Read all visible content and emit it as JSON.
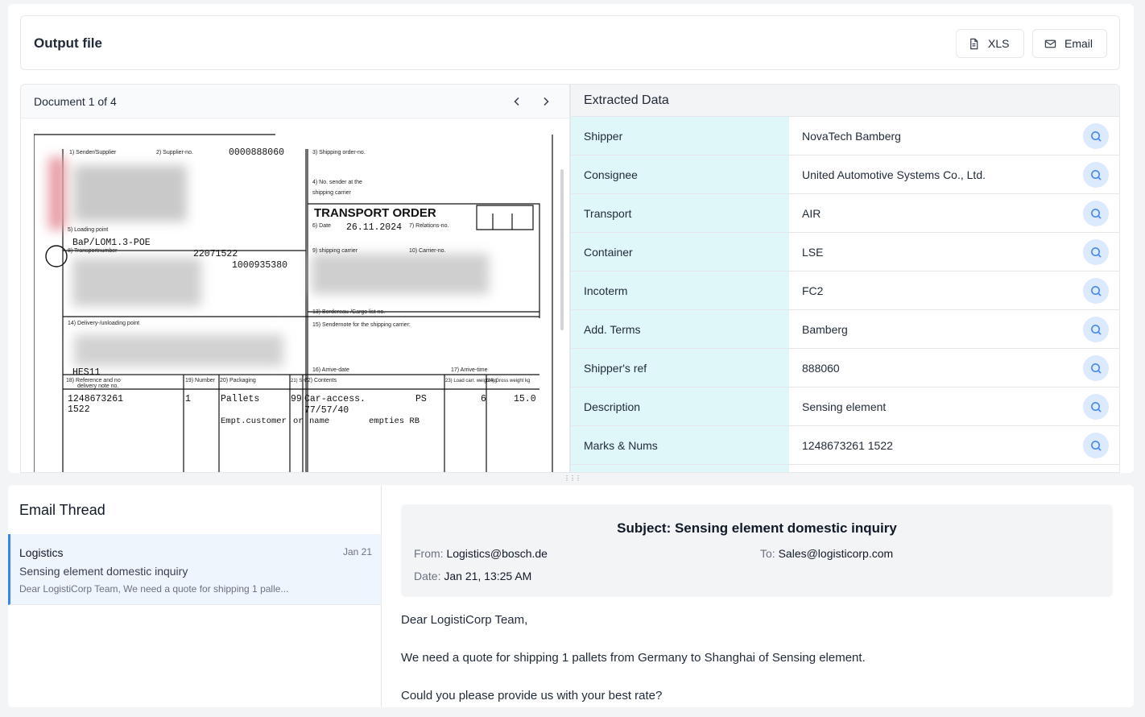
{
  "output": {
    "title": "Output file",
    "xls_label": "XLS",
    "email_label": "Email"
  },
  "document": {
    "counter": "Document 1 of 4",
    "form": {
      "sender_label": "1) Sender/Supplier",
      "supplier_label": "2) Supplier-no.",
      "supplier_no": "0000888060",
      "shipping_order_label": "3) Shipping order-no.",
      "no_sender_label": "4) No. sender at the",
      "no_sender_label2": "shipping carrier",
      "title": "TRANSPORT ORDER",
      "date_label": "6) Date",
      "date": "26.11.2024",
      "relations_label": "7) Relations-no.",
      "loading_label": "5) Loading point",
      "loading_point": "BaP/LOM1.3-POE",
      "transport_label": "8) Transportnumber",
      "transport_no": "22071522",
      "shipping_carrier_label": "9) shipping carrier",
      "carrier_label": "10) Carrier-no.",
      "customer_no": "1000935380",
      "bordereau_label": "13) Bordereau-/Cargo list no.",
      "delivery_label": "14) Delivery-/unloading point",
      "sendernote_label": "15) Sendernote for the shipping carrier:",
      "unload_code": "HES11",
      "arrive_date_label": "16) Arrive-date",
      "arrive_time_label": "17) Arrive-time",
      "ref_label": "18) Reference and no",
      "ref_label2": "delivery note no.",
      "number_label": "19) Number",
      "packaging_label": "20) Packaging",
      "sh_label": "21) SH",
      "contents_label": "22) Contents",
      "load_label": "23) Load carr. weight kg",
      "gross_label": "24) Gross weight kg",
      "ref_no": "1248673261",
      "ref_no2": "1522",
      "number": "1",
      "packaging": "Pallets",
      "packaging2": "Empt.customer",
      "sh": "99",
      "sh2": "or",
      "contents": "Car-access.",
      "contents_ps": "PS",
      "contents2": "77/57/40",
      "contents3": "name",
      "contents4": "empties RB",
      "load_weight": "6",
      "gross_weight": "15.0"
    }
  },
  "extracted": {
    "title": "Extracted Data",
    "rows": [
      {
        "label": "Shipper",
        "value": "NovaTech Bamberg"
      },
      {
        "label": "Consignee",
        "value": "United Automotive Systems Co., Ltd."
      },
      {
        "label": "Transport",
        "value": "AIR"
      },
      {
        "label": "Container",
        "value": "LSE"
      },
      {
        "label": "Incoterm",
        "value": "FC2"
      },
      {
        "label": "Add. Terms",
        "value": "Bamberg"
      },
      {
        "label": "Shipper's ref",
        "value": "888060"
      },
      {
        "label": "Description",
        "value": "Sensing element"
      },
      {
        "label": "Marks & Nums",
        "value": "1248673261 1522"
      }
    ]
  },
  "thread": {
    "title": "Email Thread",
    "item": {
      "sender": "Logistics",
      "date": "Jan 21",
      "subject": "Sensing element domestic inquiry",
      "preview": "Dear LogistiCorp Team, We need a quote for shipping 1 palle..."
    }
  },
  "email": {
    "subject": "Subject: Sensing element domestic inquiry",
    "from_label": "From:",
    "from": "Logistics@bosch.de",
    "to_label": "To:",
    "to": "Sales@logisticorp.com",
    "date_label": "Date:",
    "date": "Jan 21, 13:25 AM",
    "body": [
      "Dear LogistiCorp Team,",
      "We need a quote for shipping 1 pallets from Germany to Shanghai of Sensing element.",
      "Could you please provide us with your best rate?"
    ]
  },
  "colors": {
    "label_bg": "#e0f7fa",
    "accent": "#3b82f6",
    "search_bg": "#dbeafe"
  }
}
